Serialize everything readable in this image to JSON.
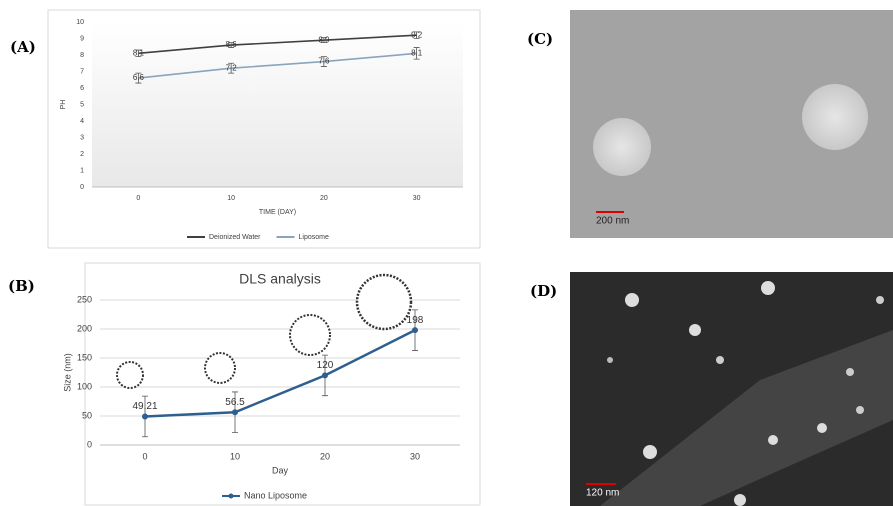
{
  "panels": {
    "A": "(A)",
    "B": "(B)",
    "C": "(C)",
    "D": "(D)"
  },
  "micrographs": [
    {
      "scale_bar": "200 nm"
    },
    {
      "scale_bar": "120 nm"
    }
  ],
  "chart_data": [
    {
      "type": "line",
      "x_label": "TIME (DAY)",
      "y_label": "PH",
      "x": [
        0,
        10,
        20,
        30
      ],
      "xlim": [
        -5,
        35
      ],
      "xticks": [
        0,
        10,
        20,
        30
      ],
      "ylim": [
        0,
        10
      ],
      "yticks": [
        0,
        1,
        2,
        3,
        4,
        5,
        6,
        7,
        8,
        9,
        10
      ],
      "grid": false,
      "legend": "bottom",
      "series": [
        {
          "name": "Deionized Water",
          "color": "#404040",
          "values": [
            8.1,
            8.6,
            8.9,
            9.2
          ],
          "errors": [
            0.2,
            0.15,
            0.15,
            0.2
          ]
        },
        {
          "name": "Liposome",
          "color": "#8aa4bd",
          "values": [
            6.6,
            7.2,
            7.6,
            8.1
          ],
          "errors": [
            0.3,
            0.3,
            0.3,
            0.35
          ]
        }
      ]
    },
    {
      "type": "line",
      "title": "DLS analysis",
      "x_label": "Day",
      "y_label": "Size (nm)",
      "x": [
        0,
        10,
        20,
        30
      ],
      "xlim": [
        -5,
        35
      ],
      "xticks": [
        0,
        10,
        20,
        30
      ],
      "ylim": [
        0,
        250
      ],
      "yticks": [
        0,
        50,
        100,
        150,
        200,
        250
      ],
      "grid": true,
      "legend": "bottom",
      "series": [
        {
          "name": "Nano Liposome",
          "color": "#2f5f8f",
          "values": [
            49.21,
            56.5,
            120,
            198
          ],
          "errors": [
            35,
            35,
            35,
            35
          ]
        }
      ]
    }
  ]
}
